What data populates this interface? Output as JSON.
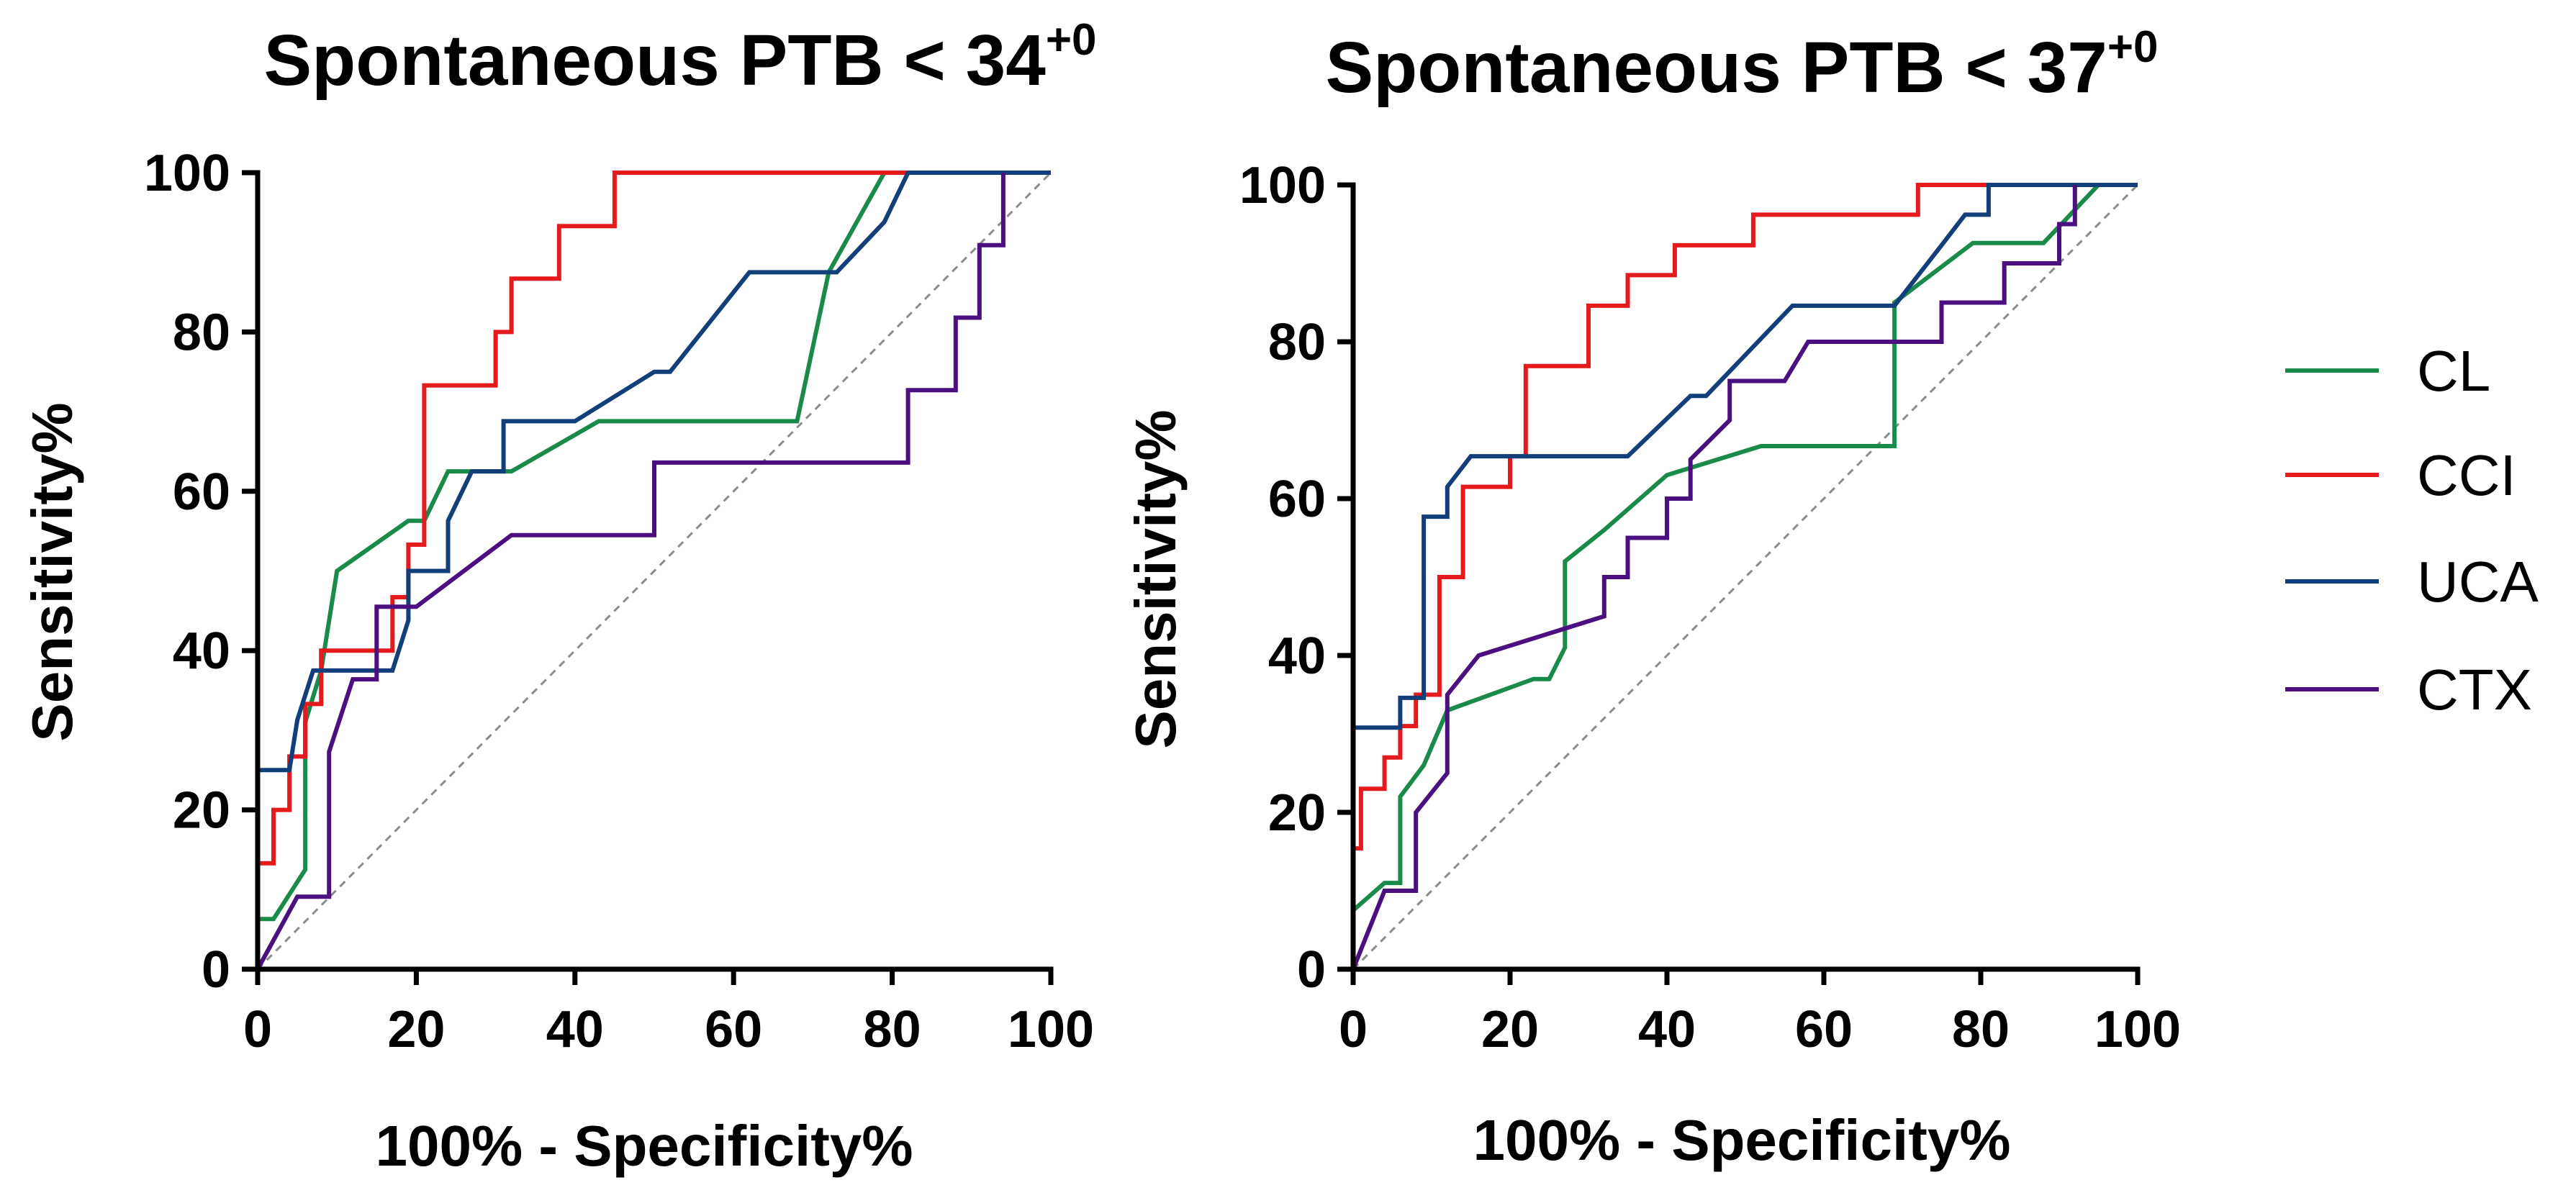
{
  "chart_data": [
    {
      "type": "line",
      "title": "Spontaneous PTB < 34",
      "title_superscript": "+0",
      "xlabel": "100% - Specificity%",
      "ylabel": "Sensitivity%",
      "xlim": [
        0,
        100
      ],
      "ylim": [
        0,
        100
      ],
      "xticks": [
        0,
        20,
        40,
        60,
        80,
        100
      ],
      "yticks": [
        0,
        20,
        40,
        60,
        80,
        100
      ],
      "reference_line": {
        "x": [
          0,
          100
        ],
        "y": [
          0,
          100
        ],
        "style": "dashed"
      },
      "series": [
        {
          "name": "CL",
          "color": "#1a8a4a",
          "x": [
            0,
            0,
            2,
            6,
            6,
            8,
            10,
            19,
            21,
            24,
            32,
            43,
            68,
            72,
            79,
            100
          ],
          "y": [
            0,
            6.3,
            6.3,
            12.5,
            31,
            37.5,
            50,
            56.3,
            56.3,
            62.5,
            62.5,
            68.8,
            68.8,
            87.5,
            100,
            100
          ]
        },
        {
          "name": "CCI",
          "color": "#e41a1c",
          "x": [
            0,
            0,
            2,
            2,
            4,
            4,
            6,
            6,
            8,
            8,
            17,
            17,
            19,
            19,
            21,
            21,
            30,
            30,
            32,
            32,
            38,
            38,
            45,
            45,
            100
          ],
          "y": [
            0,
            13.3,
            13.3,
            20,
            20,
            26.7,
            26.7,
            33.3,
            33.3,
            40,
            40,
            46.7,
            46.7,
            53.3,
            53.3,
            73.3,
            73.3,
            80,
            80,
            86.7,
            86.7,
            93.3,
            93.3,
            100,
            100
          ]
        },
        {
          "name": "UCA",
          "color": "#123f7a",
          "x": [
            0,
            0,
            4,
            5,
            7,
            13,
            17,
            19,
            19,
            24,
            24,
            27,
            31,
            31,
            40,
            50,
            52,
            62,
            73,
            79,
            82,
            100
          ],
          "y": [
            0,
            25,
            25,
            31.3,
            37.5,
            37.5,
            37.5,
            43.8,
            50,
            50,
            56.3,
            62.5,
            62.5,
            68.8,
            68.8,
            75,
            75,
            87.5,
            87.5,
            93.8,
            100,
            100
          ]
        },
        {
          "name": "CTX",
          "color": "#4b0f7f",
          "x": [
            0,
            5,
            8,
            9,
            9,
            12,
            15,
            15,
            18,
            20,
            32,
            50,
            50,
            82,
            82,
            88,
            88,
            91,
            91,
            94,
            94
          ],
          "y": [
            0,
            9.1,
            9.1,
            9.1,
            27.3,
            36.4,
            36.4,
            45.5,
            45.5,
            45.5,
            54.5,
            54.5,
            63.6,
            63.6,
            72.7,
            72.7,
            81.8,
            81.8,
            90.9,
            90.9,
            100
          ]
        }
      ]
    },
    {
      "type": "line",
      "title": "Spontaneous PTB < 37",
      "title_superscript": "+0",
      "xlabel": "100% - Specificity%",
      "ylabel": "Sensitivity%",
      "xlim": [
        0,
        100
      ],
      "ylim": [
        0,
        100
      ],
      "xticks": [
        0,
        20,
        40,
        60,
        80,
        100
      ],
      "yticks": [
        0,
        20,
        40,
        60,
        80,
        100
      ],
      "reference_line": {
        "x": [
          0,
          100
        ],
        "y": [
          0,
          100
        ],
        "style": "dashed"
      },
      "series": [
        {
          "name": "CL",
          "color": "#1a8a4a",
          "x": [
            0,
            0,
            4,
            6,
            6,
            9,
            12,
            23,
            25,
            27,
            27,
            32,
            40,
            52,
            69,
            69,
            79,
            88,
            95,
            100
          ],
          "y": [
            0,
            7.5,
            11,
            11,
            22,
            26,
            33,
            37,
            37,
            41,
            52,
            56,
            63,
            66.7,
            66.7,
            85,
            92.6,
            92.6,
            100,
            100
          ]
        },
        {
          "name": "CCI",
          "color": "#e41a1c",
          "x": [
            0,
            0,
            1,
            1,
            4,
            4,
            6,
            6,
            8,
            8,
            11,
            11,
            14,
            14,
            20,
            20,
            22,
            22,
            30,
            30,
            35,
            35,
            38,
            38,
            41,
            41,
            48,
            48,
            51,
            51,
            72,
            72,
            100
          ],
          "y": [
            0,
            15.4,
            15.4,
            23,
            23,
            27,
            27,
            31,
            31,
            35,
            35,
            50,
            50,
            61.5,
            61.5,
            65.4,
            65.4,
            76.9,
            76.9,
            84.6,
            84.6,
            88.5,
            88.5,
            88.5,
            88.5,
            92.3,
            92.3,
            92.3,
            92.3,
            96.2,
            96.2,
            100,
            100
          ]
        },
        {
          "name": "UCA",
          "color": "#123f7a",
          "x": [
            0,
            0,
            6,
            6,
            9,
            9,
            12,
            12,
            15,
            35,
            43,
            45,
            56,
            69,
            75,
            78,
            78,
            81,
            81,
            100
          ],
          "y": [
            0,
            30.8,
            30.8,
            34.6,
            34.6,
            57.7,
            57.7,
            61.5,
            65.4,
            65.4,
            73.1,
            73.1,
            84.6,
            84.6,
            92.3,
            96.2,
            96.2,
            96.2,
            100,
            100
          ]
        },
        {
          "name": "CTX",
          "color": "#4b0f7f",
          "x": [
            0,
            4,
            8,
            8,
            12,
            12,
            16,
            32,
            32,
            35,
            35,
            38,
            38,
            40,
            40,
            43,
            43,
            48,
            48,
            55,
            58,
            75,
            75,
            83,
            83,
            86,
            86,
            90,
            90,
            92,
            92
          ],
          "y": [
            0,
            10,
            10,
            20,
            25,
            35,
            40,
            45,
            50,
            50,
            55,
            55,
            55,
            55,
            60,
            60,
            65,
            70,
            75,
            75,
            80,
            80,
            85,
            85,
            90,
            90,
            90,
            90,
            95,
            95,
            100
          ]
        }
      ]
    }
  ],
  "legend": {
    "items": [
      {
        "label": "CL",
        "color": "#1a8a4a"
      },
      {
        "label": "CCI",
        "color": "#e41a1c"
      },
      {
        "label": "UCA",
        "color": "#123f7a"
      },
      {
        "label": "CTX",
        "color": "#4b0f7f"
      }
    ]
  }
}
